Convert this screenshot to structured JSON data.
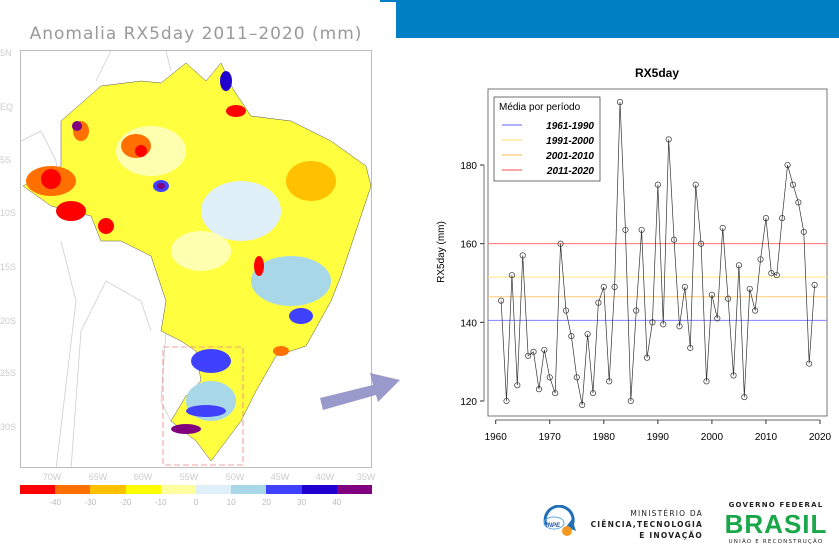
{
  "map": {
    "title": "Anomalia RX5day 2011–2020 (mm)",
    "lat_labels": [
      "5N",
      "EQ",
      "5S",
      "10S",
      "15S",
      "20S",
      "25S",
      "30S"
    ],
    "lon_labels": [
      "70W",
      "65W",
      "60W",
      "55W",
      "50W",
      "45W",
      "40W",
      "35W"
    ],
    "colorbar": {
      "colors": [
        "#ff0000",
        "#ff7000",
        "#ffc000",
        "#ffff00",
        "#ffffa0",
        "#e0f0f8",
        "#a8d8e8",
        "#4040ff",
        "#2000d0",
        "#800080"
      ],
      "labels": [
        "-40",
        "-30",
        "-20",
        "-10",
        "0",
        "10",
        "20",
        "30",
        "40"
      ]
    }
  },
  "chart_data": {
    "type": "line",
    "title": "RX5day",
    "xlabel": "",
    "ylabel": "RX5day (mm)",
    "xlim": [
      1960,
      2020
    ],
    "ylim": [
      117,
      200
    ],
    "xticks": [
      1960,
      1970,
      1980,
      1990,
      2000,
      2010,
      2020
    ],
    "yticks": [
      120,
      140,
      160,
      180
    ],
    "grid": false,
    "legend": {
      "title": "Média por período",
      "placement": "top-left"
    },
    "x": [
      1961,
      1962,
      1963,
      1964,
      1965,
      1966,
      1967,
      1968,
      1969,
      1970,
      1971,
      1972,
      1973,
      1974,
      1975,
      1976,
      1977,
      1978,
      1979,
      1980,
      1981,
      1982,
      1983,
      1984,
      1985,
      1986,
      1987,
      1988,
      1989,
      1990,
      1991,
      1992,
      1993,
      1994,
      1995,
      1996,
      1997,
      1998,
      1999,
      2000,
      2001,
      2002,
      2003,
      2004,
      2005,
      2006,
      2007,
      2008,
      2009,
      2010,
      2011,
      2012,
      2013,
      2014,
      2015,
      2016,
      2017,
      2018,
      2019
    ],
    "y": [
      145.5,
      120,
      152,
      124,
      157,
      131.5,
      132.5,
      123,
      133,
      126,
      122,
      160,
      143,
      136.5,
      126,
      119,
      137,
      122,
      145,
      149,
      125,
      149,
      196,
      163.5,
      120,
      143,
      163.5,
      131,
      140,
      175,
      139.5,
      186.5,
      161,
      139,
      149,
      133.5,
      175,
      160,
      125,
      147,
      141,
      164,
      146,
      126.5,
      154.5,
      121,
      148.5,
      143,
      156,
      166.5,
      152.5,
      152,
      166.5,
      180,
      175,
      170.5,
      163,
      129.5,
      149.5
    ],
    "reference_lines": [
      {
        "name": "1961-1990",
        "value": 140.5,
        "color": "#8080ff"
      },
      {
        "name": "1991-2000",
        "value": 151.5,
        "color": "#ffe680"
      },
      {
        "name": "2001-2010",
        "value": 146.5,
        "color": "#ffc870"
      },
      {
        "name": "2011-2020",
        "value": 160,
        "color": "#ff7070"
      }
    ]
  },
  "logos": {
    "inpe": "INPE",
    "ministry": [
      "MINISTÉRIO DA",
      "CIÊNCIA,TECNOLOGIA",
      "E INOVAÇÃO"
    ],
    "gov_title": "GOVERNO FEDERAL",
    "gov_word": "BRASIL",
    "gov_sub": "UNIÃO E RECONSTRUÇÃO"
  },
  "colors": {
    "banner": "#0080c4",
    "arrow": "#9999cc"
  }
}
